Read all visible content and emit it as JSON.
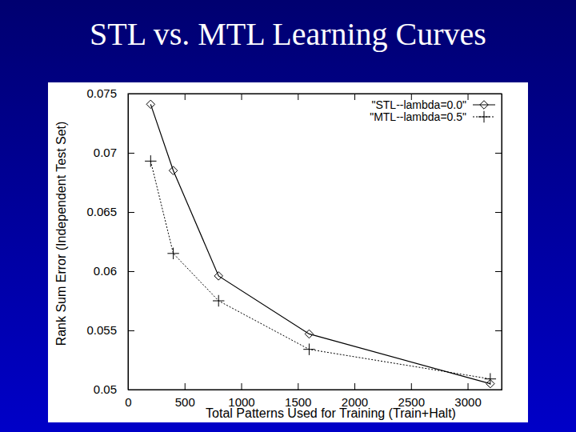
{
  "chart_data": {
    "type": "line",
    "title": "STL vs. MTL Learning Curves",
    "x_label": "Total Patterns Used for Training (Train+Halt)",
    "y_label": "Rank Sum Error (Independent Test Set)",
    "x": [
      200,
      400,
      800,
      1600,
      3200
    ],
    "series": [
      {
        "name": "\"STL--lambda=0.0\"",
        "color": "#000000",
        "marker": "diamond",
        "line_style": "solid",
        "values": [
          0.0741,
          0.0685,
          0.0596,
          0.0547,
          0.0505
        ]
      },
      {
        "name": "\"MTL--lambda=0.5\"",
        "color": "#000000",
        "marker": "plus",
        "line_style": "dotted",
        "values": [
          0.0693,
          0.0615,
          0.0575,
          0.0534,
          0.0509
        ]
      }
    ],
    "xlim": [
      0,
      3300
    ],
    "ylim": [
      0.05,
      0.075
    ],
    "xticks": [
      0,
      500,
      1000,
      1500,
      2000,
      2500,
      3000
    ],
    "yticks": [
      0.05,
      0.055,
      0.06,
      0.065,
      0.07,
      0.075
    ],
    "grid": false,
    "legend": "top-right"
  }
}
